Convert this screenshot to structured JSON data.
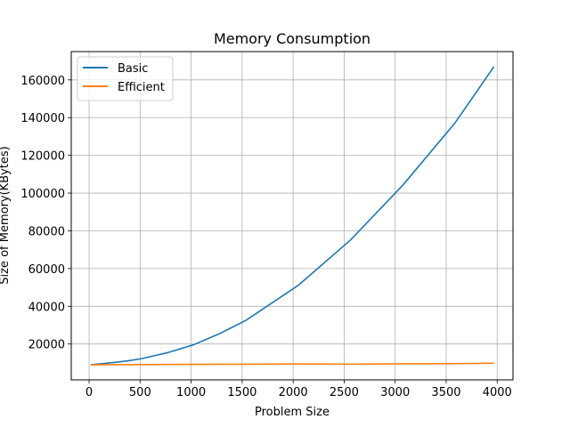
{
  "chart_data": {
    "type": "line",
    "title": "Memory Consumption",
    "xlabel": "Problem Size",
    "ylabel": "Size of Memory(KBytes)",
    "xlim": [
      -175,
      4155
    ],
    "ylim": [
      1000,
      175000
    ],
    "xticks": [
      0,
      500,
      1000,
      1500,
      2000,
      2500,
      3000,
      3500,
      4000
    ],
    "yticks": [
      20000,
      40000,
      60000,
      80000,
      100000,
      120000,
      140000,
      160000
    ],
    "xtick_labels": [
      "0",
      "500",
      "1000",
      "1500",
      "2000",
      "2500",
      "3000",
      "3500",
      "4000"
    ],
    "ytick_labels": [
      "20000",
      "40000",
      "60000",
      "80000",
      "100000",
      "120000",
      "140000",
      "160000"
    ],
    "grid": true,
    "legend": "top-left",
    "series": [
      {
        "name": "Basic",
        "color": "#1f77b4",
        "x": [
          16,
          128,
          256,
          384,
          512,
          768,
          1024,
          1280,
          1536,
          2048,
          2560,
          3072,
          3584,
          3968
        ],
        "y": [
          9000,
          9600,
          10300,
          11100,
          12200,
          15400,
          19600,
          25500,
          32500,
          51000,
          75000,
          104000,
          137000,
          167000
        ]
      },
      {
        "name": "Efficient",
        "color": "#ff7f0e",
        "x": [
          16,
          512,
          1024,
          1536,
          2048,
          2560,
          3072,
          3584,
          3968
        ],
        "y": [
          9000,
          9100,
          9200,
          9300,
          9400,
          9300,
          9500,
          9600,
          9800
        ]
      }
    ]
  }
}
